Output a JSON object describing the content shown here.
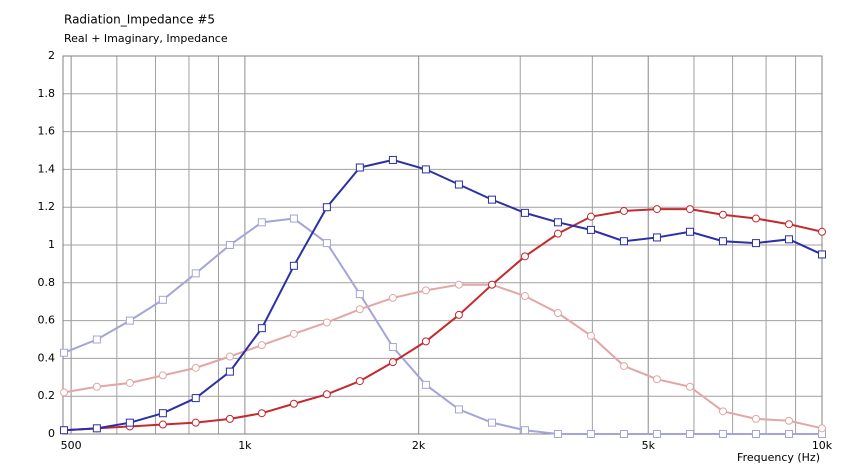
{
  "chart_data": {
    "type": "line",
    "title": "Radiation_Impedance #5",
    "subtitle": "Real + Imaginary, Impedance",
    "x_label": "Frequency  (Hz)",
    "xscale": "log",
    "grid": true,
    "x": [
      486,
      554,
      632,
      721,
      822,
      942,
      1070,
      1216,
      1387,
      1582,
      1805,
      2059,
      2349,
      2680,
      3057,
      3487,
      3978,
      4538,
      5176,
      5905,
      6736,
      7684,
      8766,
      10000
    ],
    "xlim": [
      484,
      10000
    ],
    "xticks": [
      500,
      {
        "value": 1000,
        "label": "1k"
      },
      {
        "value": 2000,
        "label": "2k"
      },
      {
        "value": 5000,
        "label": "5k"
      },
      {
        "value": 10000,
        "label": "10k"
      }
    ],
    "ylim": [
      0,
      2
    ],
    "yticks": [
      0,
      0.2,
      0.4,
      0.6,
      0.8,
      1,
      1.2,
      1.4,
      1.6,
      1.8,
      2
    ],
    "series": [
      {
        "color": "#a4a4d8",
        "marker": "square",
        "values": [
          0.43,
          0.5,
          0.6,
          0.71,
          0.85,
          1.0,
          1.12,
          1.14,
          1.01,
          0.74,
          0.46,
          0.26,
          0.13,
          0.06,
          0.02,
          0.0,
          0.0,
          0.0,
          0.0,
          0.0,
          0.0,
          0.0,
          0.0,
          0.0
        ]
      },
      {
        "color": "#e3a6a6",
        "marker": "circle",
        "values": [
          0.22,
          0.25,
          0.27,
          0.31,
          0.35,
          0.41,
          0.47,
          0.53,
          0.59,
          0.66,
          0.72,
          0.76,
          0.79,
          0.79,
          0.73,
          0.64,
          0.52,
          0.36,
          0.29,
          0.25,
          0.12,
          0.08,
          0.07,
          0.03
        ]
      },
      {
        "color": "#c42a2e",
        "marker": "circle",
        "values": [
          0.02,
          0.03,
          0.04,
          0.05,
          0.06,
          0.08,
          0.11,
          0.16,
          0.21,
          0.28,
          0.38,
          0.49,
          0.63,
          0.79,
          0.94,
          1.06,
          1.15,
          1.18,
          1.19,
          1.19,
          1.16,
          1.14,
          1.11,
          1.07
        ]
      },
      {
        "color": "#2c30a6",
        "marker": "square",
        "values": [
          0.02,
          0.03,
          0.06,
          0.11,
          0.19,
          0.33,
          0.56,
          0.89,
          1.2,
          1.41,
          1.45,
          1.4,
          1.32,
          1.24,
          1.17,
          1.12,
          1.08,
          1.02,
          1.04,
          1.07,
          1.02,
          1.01,
          1.03,
          0.95
        ]
      }
    ]
  }
}
